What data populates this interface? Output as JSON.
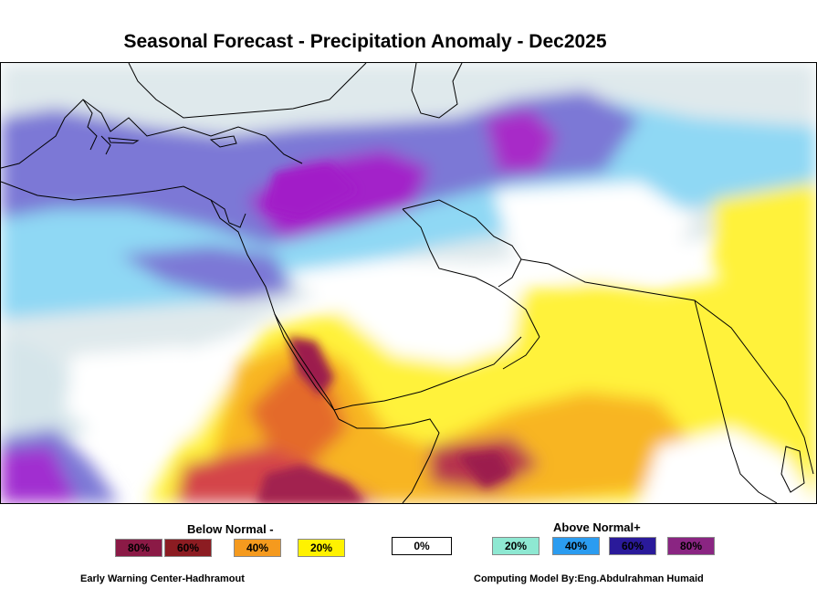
{
  "title": "Seasonal Forecast - Precipitation Anomaly - Dec2025",
  "legend": {
    "below_label": "Below Normal -",
    "above_label": "Above Normal+",
    "neutral": {
      "label": "0%",
      "color": "#ffffff"
    },
    "below": [
      {
        "label": "80%",
        "color": "#8b1a46"
      },
      {
        "label": "60%",
        "color": "#8c1c22"
      },
      {
        "label": "40%",
        "color": "#f59a1e"
      },
      {
        "label": "20%",
        "color": "#fff200"
      }
    ],
    "above": [
      {
        "label": "20%",
        "color": "#8ee8d2"
      },
      {
        "label": "40%",
        "color": "#2b9cf0"
      },
      {
        "label": "60%",
        "color": "#2a1a9a"
      },
      {
        "label": "80%",
        "color": "#8a2582"
      }
    ]
  },
  "footer": {
    "left": "Early Warning Center-Hadhramout",
    "right": "Computing Model By:Eng.Abdulrahman Humaid"
  }
}
